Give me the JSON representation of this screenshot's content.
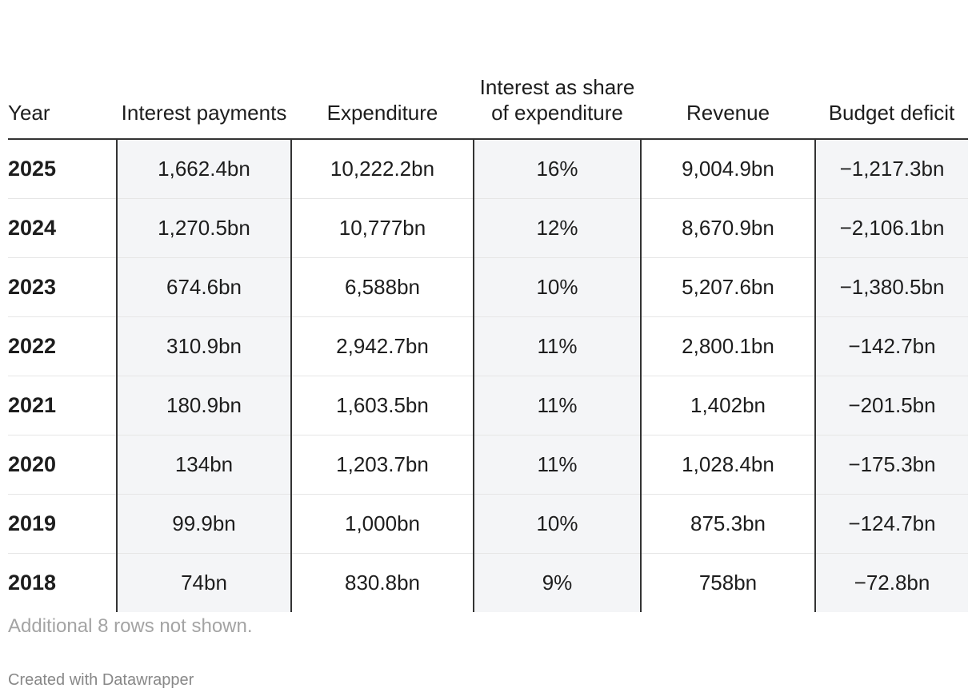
{
  "chart_data": {
    "type": "table",
    "columns": [
      "Year",
      "Interest payments",
      "Expenditure",
      "Interest as share of expenditure",
      "Revenue",
      "Budget deficit"
    ],
    "rows": [
      [
        "2025",
        "1,662.4bn",
        "10,222.2bn",
        "16%",
        "9,004.9bn",
        "−1,217.3bn"
      ],
      [
        "2024",
        "1,270.5bn",
        "10,777bn",
        "12%",
        "8,670.9bn",
        "−2,106.1bn"
      ],
      [
        "2023",
        "674.6bn",
        "6,588bn",
        "10%",
        "5,207.6bn",
        "−1,380.5bn"
      ],
      [
        "2022",
        "310.9bn",
        "2,942.7bn",
        "11%",
        "2,800.1bn",
        "−142.7bn"
      ],
      [
        "2021",
        "180.9bn",
        "1,603.5bn",
        "11%",
        "1,402bn",
        "−201.5bn"
      ],
      [
        "2020",
        "134bn",
        "1,203.7bn",
        "11%",
        "1,028.4bn",
        "−175.3bn"
      ],
      [
        "2019",
        "99.9bn",
        "1,000bn",
        "10%",
        "875.3bn",
        "−124.7bn"
      ],
      [
        "2018",
        "74bn",
        "830.8bn",
        "9%",
        "758bn",
        "−72.8bn"
      ]
    ],
    "note": "Additional 8 rows not shown.",
    "credit": "Created with Datawrapper"
  },
  "colors": {
    "shaded_cell": "#f4f5f7",
    "divider": "#333333",
    "row_rule": "#e6e6e6",
    "note_text": "#a4a4a4"
  }
}
